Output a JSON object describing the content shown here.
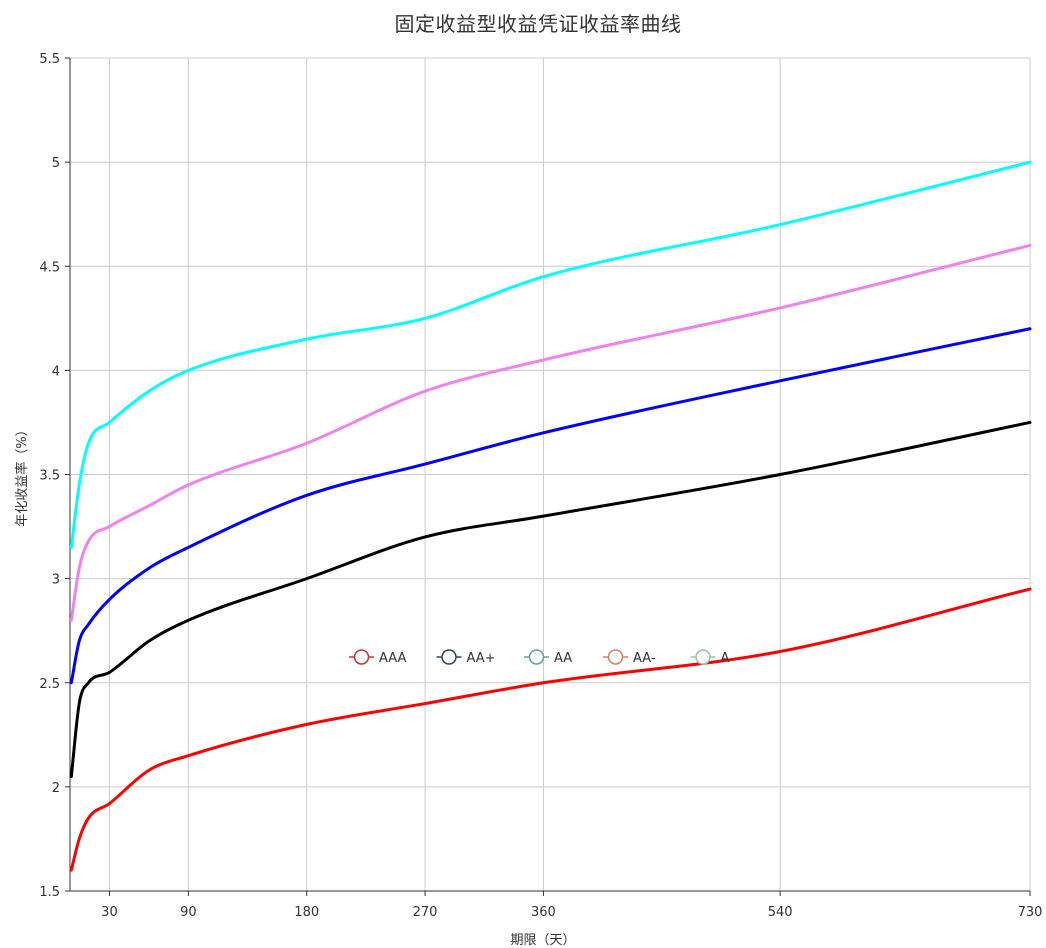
{
  "chart_data": {
    "type": "line",
    "title": "固定收益型收益凭证收益率曲线",
    "xlabel": "期限（天）",
    "ylabel": "年化收益率（%）",
    "xlim": [
      0,
      730
    ],
    "ylim": [
      1.5,
      5.5
    ],
    "x_ticks": [
      30,
      90,
      180,
      270,
      360,
      540,
      730
    ],
    "y_ticks": [
      1.5,
      2,
      2.5,
      3,
      3.5,
      4,
      4.5,
      5,
      5.5
    ],
    "x_tick_labels": [
      "30",
      "90",
      "180",
      "270",
      "360",
      "540",
      "730"
    ],
    "y_tick_labels": [
      "1.5",
      "2",
      "2.5",
      "3",
      "3.5",
      "4",
      "4.5",
      "5",
      "5.5"
    ],
    "grid": true,
    "legend": {
      "position": "center",
      "entries": [
        {
          "name": "AAA",
          "color": "#c23531"
        },
        {
          "name": "AA+",
          "color": "#2f4554"
        },
        {
          "name": "AA",
          "color": "#61a0a8"
        },
        {
          "name": "AA-",
          "color": "#d48265"
        },
        {
          "name": "A",
          "color": "#91c7ae"
        }
      ]
    },
    "x": [
      1,
      7,
      14,
      30,
      60,
      90,
      180,
      270,
      360,
      540,
      730
    ],
    "series": [
      {
        "name": "AAA",
        "color": "#ff0000",
        "values": [
          1.6,
          1.75,
          1.85,
          1.92,
          2.08,
          2.15,
          2.3,
          2.4,
          2.5,
          2.65,
          2.95
        ]
      },
      {
        "name": "AA+",
        "color": "#000000",
        "values": [
          2.05,
          2.4,
          2.5,
          2.55,
          2.7,
          2.8,
          3.0,
          3.2,
          3.3,
          3.5,
          3.75
        ]
      },
      {
        "name": "AA",
        "color": "#0000ff",
        "values": [
          2.5,
          2.7,
          2.78,
          2.9,
          3.05,
          3.15,
          3.4,
          3.55,
          3.7,
          3.95,
          4.2
        ]
      },
      {
        "name": "AA-",
        "color": "#ee82ee",
        "values": [
          2.8,
          3.05,
          3.18,
          3.25,
          3.35,
          3.45,
          3.65,
          3.9,
          4.05,
          4.3,
          4.6
        ]
      },
      {
        "name": "A",
        "color": "#00ffff",
        "values": [
          3.15,
          3.45,
          3.65,
          3.75,
          3.9,
          4.0,
          4.15,
          4.25,
          4.45,
          4.7,
          5.0
        ]
      }
    ]
  }
}
